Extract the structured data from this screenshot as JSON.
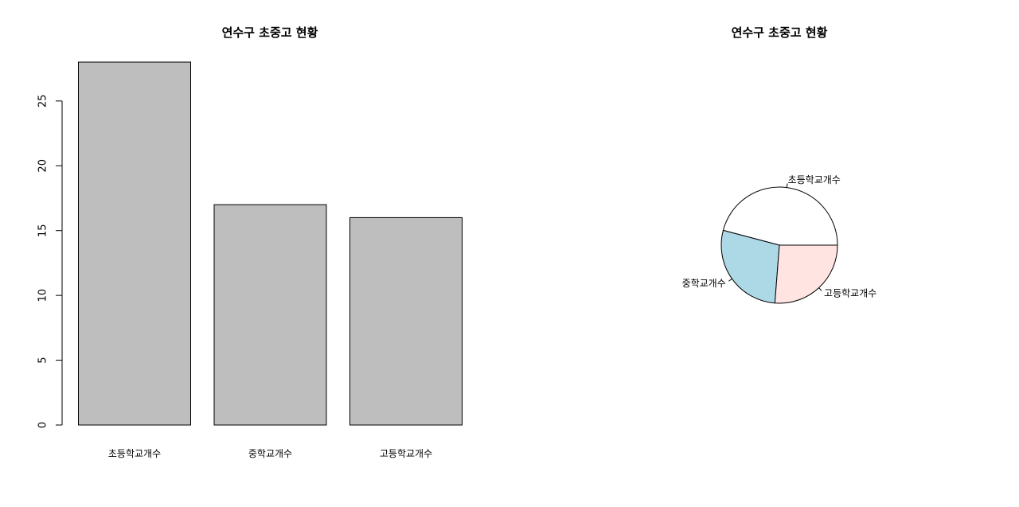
{
  "chart_data": [
    {
      "type": "bar",
      "title": "연수구 초중고 현황",
      "categories": [
        "초등학교개수",
        "중학교개수",
        "고등학교개수"
      ],
      "values": [
        28,
        17,
        16
      ],
      "xlabel": "",
      "ylabel": "",
      "ylim": [
        0,
        28
      ],
      "yticks": [
        0,
        5,
        10,
        15,
        20,
        25
      ],
      "bar_color": "#bebebe",
      "grid": false
    },
    {
      "type": "pie",
      "title": "연수구 초중고 현황",
      "labels": [
        "초등학교개수",
        "중학교개수",
        "고등학교개수"
      ],
      "values": [
        28,
        17,
        16
      ],
      "colors": [
        "#ffffff",
        "#add8e6",
        "#ffe4e1"
      ]
    }
  ]
}
